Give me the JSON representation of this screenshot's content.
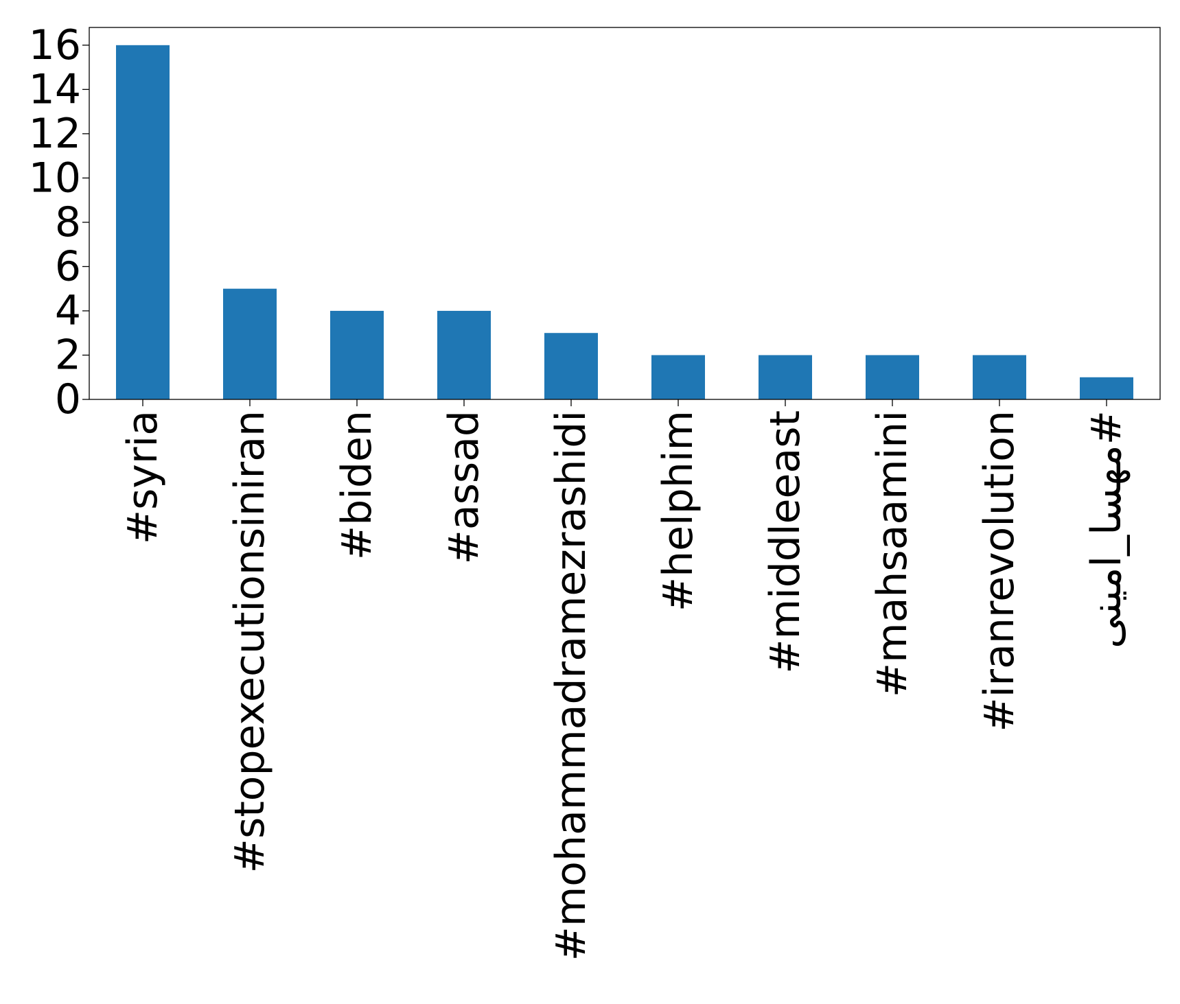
{
  "chart_data": {
    "type": "bar",
    "title": "",
    "xlabel": "",
    "ylabel": "",
    "categories": [
      "#syria",
      "#stopexecutionsiniran",
      "#biden",
      "#assad",
      "#mohammadramezrashidi",
      "#helphim",
      "#middleeast",
      "#mahsaamini",
      "#iranrevolution",
      "#مهسا_امینی"
    ],
    "values": [
      16,
      5,
      4,
      4,
      3,
      2,
      2,
      2,
      2,
      1
    ],
    "ylim": [
      0,
      16.8
    ],
    "yticks": [
      0,
      2,
      4,
      6,
      8,
      10,
      12,
      14,
      16
    ],
    "ytick_labels": [
      "0",
      "2",
      "4",
      "6",
      "8",
      "10",
      "12",
      "14",
      "16"
    ],
    "bar_color": "#1f77b4",
    "grid": false,
    "legend": "none"
  }
}
